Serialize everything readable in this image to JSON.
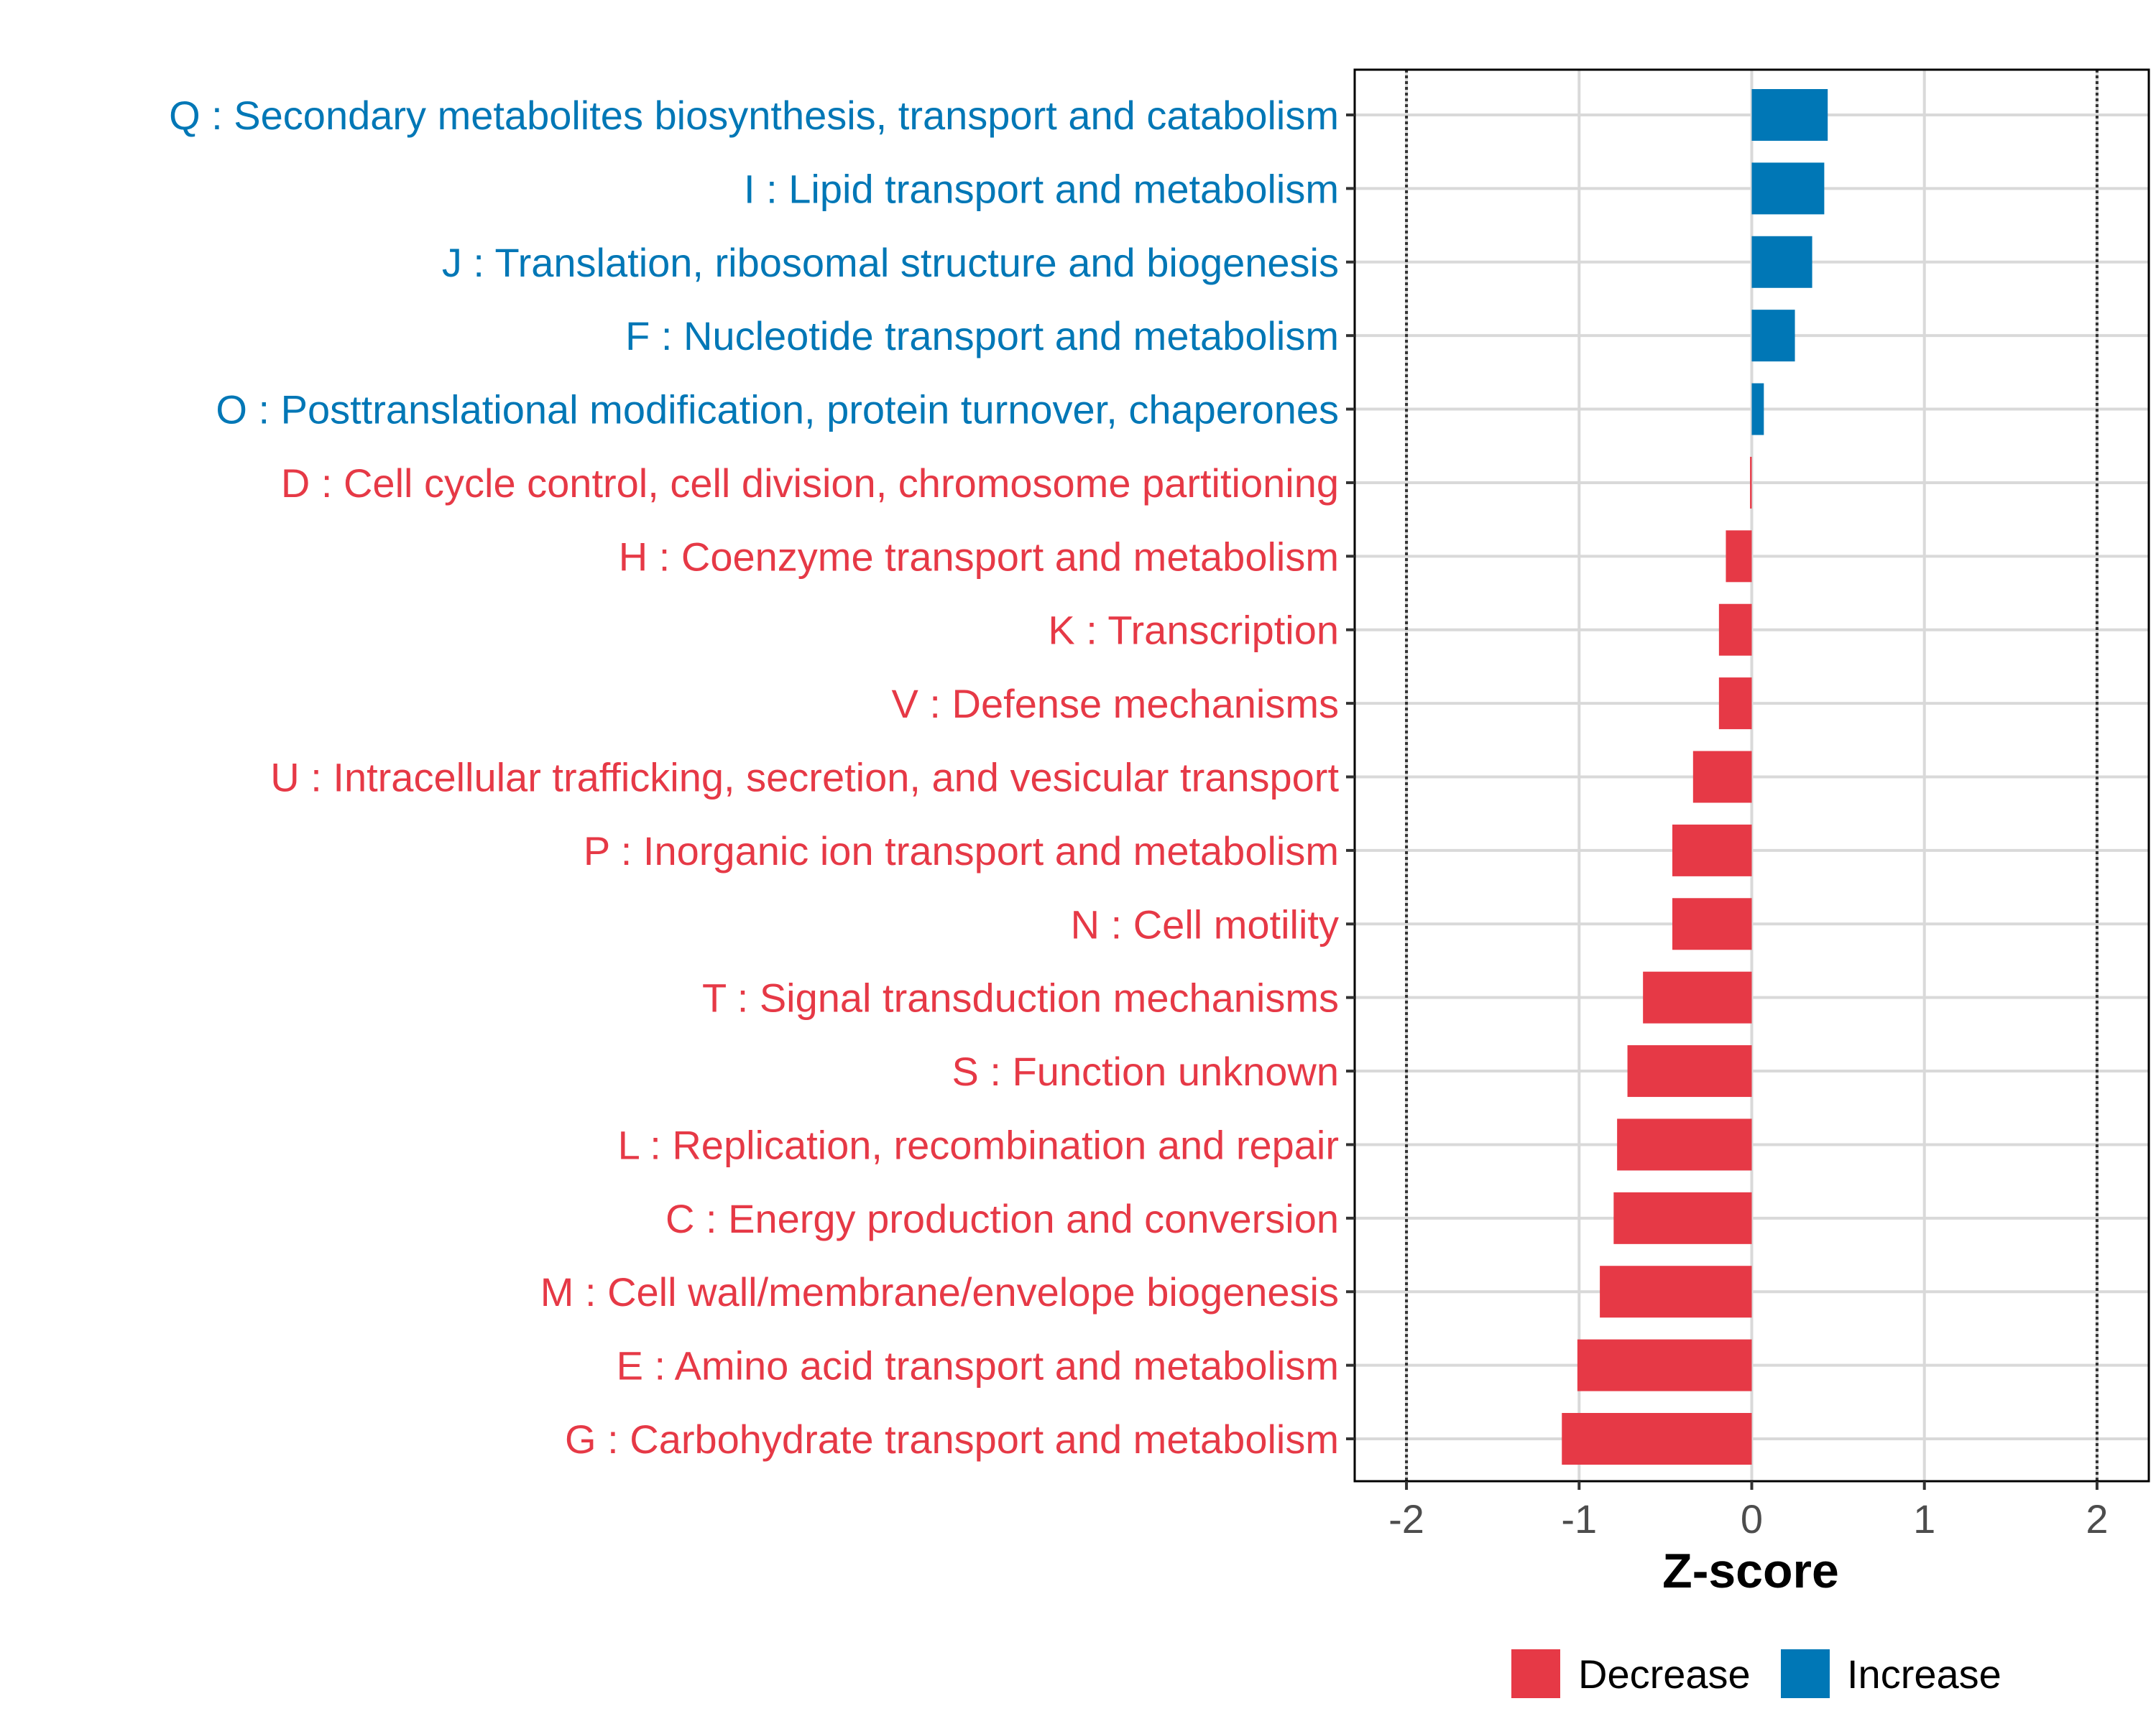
{
  "chart_data": {
    "type": "bar",
    "orientation": "horizontal",
    "title": "",
    "xlabel": "Z-score",
    "ylabel": "",
    "xlim": [
      -2.3,
      2.3
    ],
    "xticks": [
      -2,
      -1,
      0,
      1,
      2
    ],
    "xtick_labels": [
      "-2",
      "-1",
      "0",
      "1",
      "2"
    ],
    "reference_lines": [
      -2,
      2
    ],
    "grid": true,
    "legend_position": "bottom",
    "colors": {
      "Decrease": "#e63946",
      "Increase": "#0077b6"
    },
    "legend": [
      {
        "label": "Decrease",
        "color": "#e63946"
      },
      {
        "label": "Increase",
        "color": "#0077b6"
      }
    ],
    "categories": [
      "Q : Secondary metabolites biosynthesis, transport and catabolism",
      "I : Lipid transport and metabolism",
      "J : Translation, ribosomal structure and biogenesis",
      "F : Nucleotide transport and metabolism",
      "O : Posttranslational modification, protein turnover, chaperones",
      "D : Cell cycle control, cell division, chromosome partitioning",
      "H : Coenzyme transport and metabolism",
      "K : Transcription",
      "V : Defense mechanisms",
      "U : Intracellular trafficking, secretion, and vesicular transport",
      "P : Inorganic ion transport and metabolism",
      "N : Cell motility",
      "T : Signal transduction mechanisms",
      "S : Function unknown",
      "L : Replication, recombination and repair",
      "C : Energy production and conversion",
      "M : Cell wall/membrane/envelope biogenesis",
      "E : Amino acid transport and metabolism",
      "G : Carbohydrate transport and metabolism"
    ],
    "values": [
      0.44,
      0.42,
      0.35,
      0.25,
      0.07,
      -0.01,
      -0.15,
      -0.19,
      -0.19,
      -0.34,
      -0.46,
      -0.46,
      -0.63,
      -0.72,
      -0.78,
      -0.8,
      -0.88,
      -1.01,
      -1.1
    ],
    "groups": [
      "Increase",
      "Increase",
      "Increase",
      "Increase",
      "Increase",
      "Decrease",
      "Decrease",
      "Decrease",
      "Decrease",
      "Decrease",
      "Decrease",
      "Decrease",
      "Decrease",
      "Decrease",
      "Decrease",
      "Decrease",
      "Decrease",
      "Decrease",
      "Decrease"
    ]
  }
}
